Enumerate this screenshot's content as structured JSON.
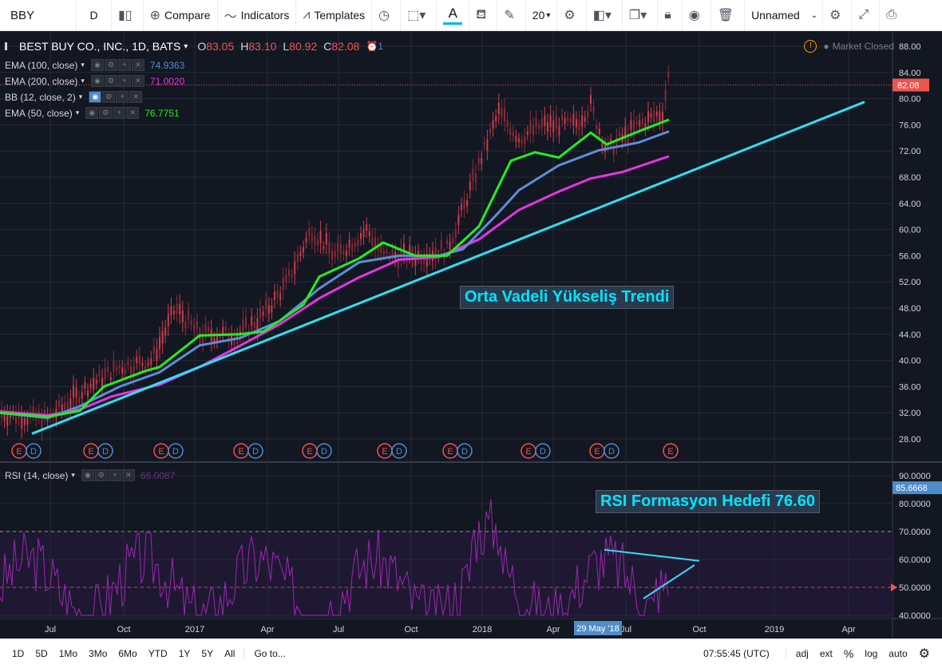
{
  "toolbar": {
    "symbol": "BBY",
    "resolution": "D",
    "compare": "Compare",
    "indicators": "Indicators",
    "templates": "Templates",
    "font_size": "20",
    "layout_name": "Unnamed"
  },
  "chart": {
    "title": "BEST BUY CO., INC., 1D, BATS",
    "ohlc": [
      {
        "k": "O",
        "v": "83.05"
      },
      {
        "k": "H",
        "v": "83.10"
      },
      {
        "k": "L",
        "v": "80.92"
      },
      {
        "k": "C",
        "v": "82.08"
      }
    ],
    "alert_count": "1",
    "market_status": "Market Closed",
    "last_price": "82.08",
    "price_axis": [
      "88.00",
      "84.00",
      "80.00",
      "76.00",
      "72.00",
      "68.00",
      "64.00",
      "60.00",
      "56.00",
      "52.00",
      "48.00",
      "44.00",
      "40.00",
      "36.00",
      "32.00",
      "28.00"
    ],
    "time_axis": [
      "Jul",
      "Oct",
      "2017",
      "Apr",
      "Jul",
      "Oct",
      "2018",
      "Apr",
      "Jul",
      "Oct",
      "2019",
      "Apr"
    ],
    "crosshair_date": "29 May '18",
    "colors": {
      "ema100": "#5b8fd6",
      "ema200": "#e535e5",
      "ema50": "#22ee22",
      "trend": "#2ee0f0",
      "rsi": "#9c27b0"
    }
  },
  "indicators": [
    {
      "label": "EMA (100, close)",
      "value": "74.9363",
      "color": "#4f8cc9"
    },
    {
      "label": "EMA (200, close)",
      "value": "71.0020",
      "color": "#e535e5"
    },
    {
      "label": "BB (12, close, 2)",
      "value": "",
      "color": "#d1d4dc"
    },
    {
      "label": "EMA (50, close)",
      "value": "76.7751",
      "color": "#22ee22"
    }
  ],
  "rsi": {
    "label": "RSI (14, close)",
    "value": "66.0087",
    "last_value": "85.6668",
    "axis": [
      "90.0000",
      "80.0000",
      "70.0000",
      "60.0000",
      "50.0000",
      "40.0000"
    ]
  },
  "annotations": {
    "trend_text": "Orta Vadeli Yükseliş Trendi",
    "rsi_text": "RSI Formasyon Hedefi 76.60"
  },
  "events": [
    "E",
    "D",
    "E",
    "D",
    "E",
    "D",
    "E",
    "D",
    "E",
    "D",
    "E",
    "D",
    "E",
    "D",
    "E",
    "D",
    "E",
    "D",
    "E"
  ],
  "bottom": {
    "ranges": [
      "1D",
      "5D",
      "1Mo",
      "3Mo",
      "6Mo",
      "YTD",
      "1Y",
      "5Y",
      "All"
    ],
    "goto": "Go to...",
    "clock": "07:55:45 (UTC)",
    "options": [
      "adj",
      "ext",
      "%",
      "log",
      "auto"
    ]
  }
}
